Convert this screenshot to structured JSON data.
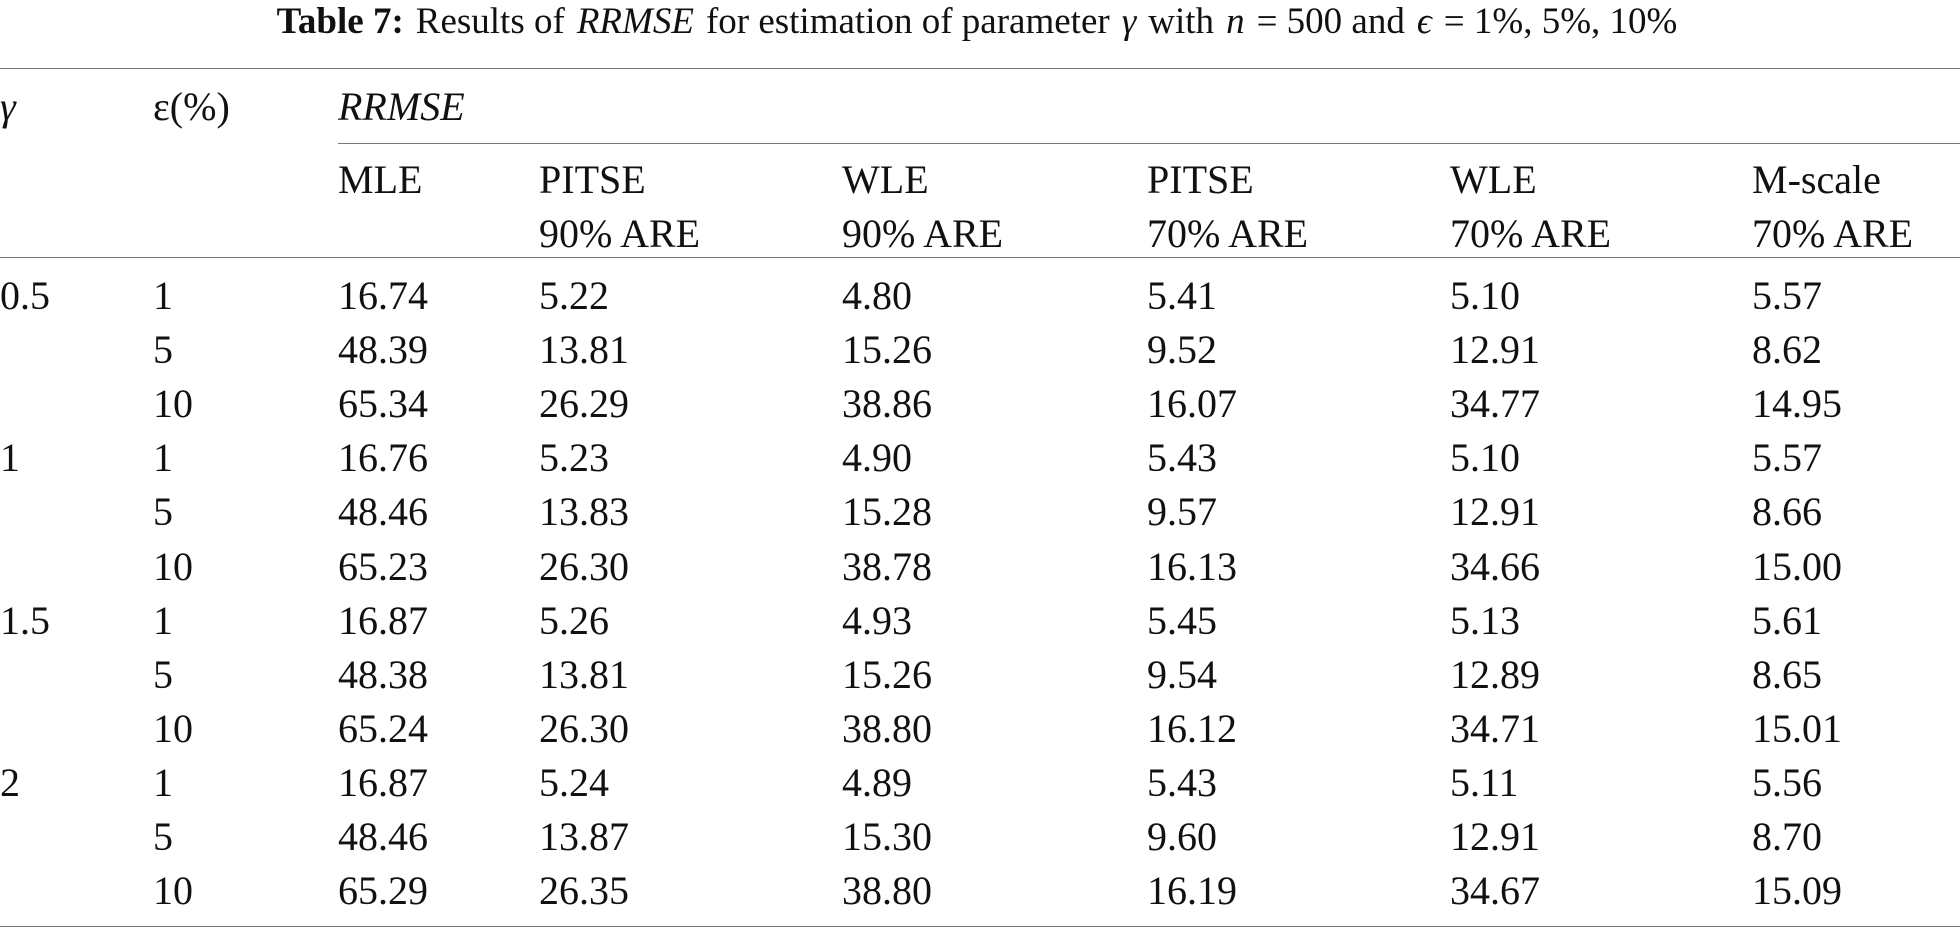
{
  "caption": {
    "label": "Table 7:",
    "parts": [
      "Results of",
      "RRMSE",
      "for estimation of parameter",
      "γ",
      "with",
      "n",
      "= 500 and",
      "ϵ",
      "= 1%, 5%, 10%"
    ]
  },
  "table": {
    "headers": {
      "gamma": "γ",
      "eps": "ε(%)",
      "group": "RRMSE",
      "columns": [
        [
          "MLE"
        ],
        [
          "PITSE",
          "90% ARE"
        ],
        [
          "WLE",
          "90% ARE"
        ],
        [
          "PITSE",
          "70% ARE"
        ],
        [
          "WLE",
          "70% ARE"
        ],
        [
          "M-scale",
          "70% ARE"
        ]
      ]
    },
    "groups": [
      {
        "gamma": "0.5",
        "rows": [
          [
            "1",
            "16.74",
            "5.22",
            "4.80",
            "5.41",
            "5.10",
            "5.57"
          ],
          [
            "5",
            "48.39",
            "13.81",
            "15.26",
            "9.52",
            "12.91",
            "8.62"
          ],
          [
            "10",
            "65.34",
            "26.29",
            "38.86",
            "16.07",
            "34.77",
            "14.95"
          ]
        ]
      },
      {
        "gamma": "1",
        "rows": [
          [
            "1",
            "16.76",
            "5.23",
            "4.90",
            "5.43",
            "5.10",
            "5.57"
          ],
          [
            "5",
            "48.46",
            "13.83",
            "15.28",
            "9.57",
            "12.91",
            "8.66"
          ],
          [
            "10",
            "65.23",
            "26.30",
            "38.78",
            "16.13",
            "34.66",
            "15.00"
          ]
        ]
      },
      {
        "gamma": "1.5",
        "rows": [
          [
            "1",
            "16.87",
            "5.26",
            "4.93",
            "5.45",
            "5.13",
            "5.61"
          ],
          [
            "5",
            "48.38",
            "13.81",
            "15.26",
            "9.54",
            "12.89",
            "8.65"
          ],
          [
            "10",
            "65.24",
            "26.30",
            "38.80",
            "16.12",
            "34.71",
            "15.01"
          ]
        ]
      },
      {
        "gamma": "2",
        "rows": [
          [
            "1",
            "16.87",
            "5.24",
            "4.89",
            "5.43",
            "5.11",
            "5.56"
          ],
          [
            "5",
            "48.46",
            "13.87",
            "15.30",
            "9.60",
            "12.91",
            "8.70"
          ],
          [
            "10",
            "65.29",
            "26.35",
            "38.80",
            "16.19",
            "34.67",
            "15.09"
          ]
        ]
      }
    ]
  }
}
